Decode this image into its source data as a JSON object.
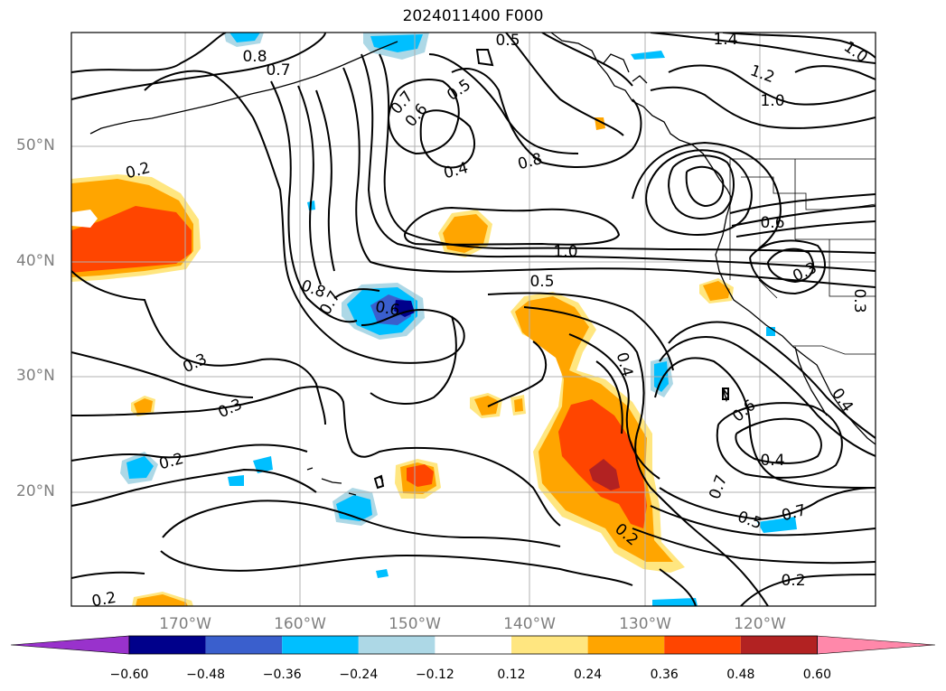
{
  "title": "2024011400 F000",
  "lat_labels": [
    "50°N",
    "40°N",
    "30°N",
    "20°N"
  ],
  "lon_labels": [
    "170°W",
    "160°W",
    "150°W",
    "140°W",
    "130°W",
    "120°W"
  ],
  "contour_labels": [
    "0.5",
    "1.4",
    "1.2",
    "1.0",
    "0.8",
    "0.7",
    "0.7",
    "0.6",
    "0.5",
    "0.4",
    "0.8",
    "0.2",
    "1.0",
    "0.5",
    "0.8",
    "0.7",
    "0.6",
    "0.6",
    "0.3",
    "0.3",
    "0.3",
    "0.3",
    "0.2",
    "0.4",
    "0.6",
    "0.4",
    "0.7",
    "0.5",
    "0.7",
    "0.2",
    "0.2",
    "0.2",
    "1.0",
    "0.4"
  ],
  "colorbar": {
    "colors": [
      "#9932cc",
      "#00008b",
      "#3a5fcd",
      "#00bfff",
      "#add8e6",
      "#ffffff",
      "#ffe680",
      "#ffa500",
      "#ff4500",
      "#b22222",
      "#ff88aa"
    ],
    "tick_labels": [
      "−0.60",
      "−0.48",
      "−0.36",
      "−0.24",
      "−0.12",
      "0.12",
      "0.24",
      "0.36",
      "0.48",
      "0.60"
    ]
  }
}
